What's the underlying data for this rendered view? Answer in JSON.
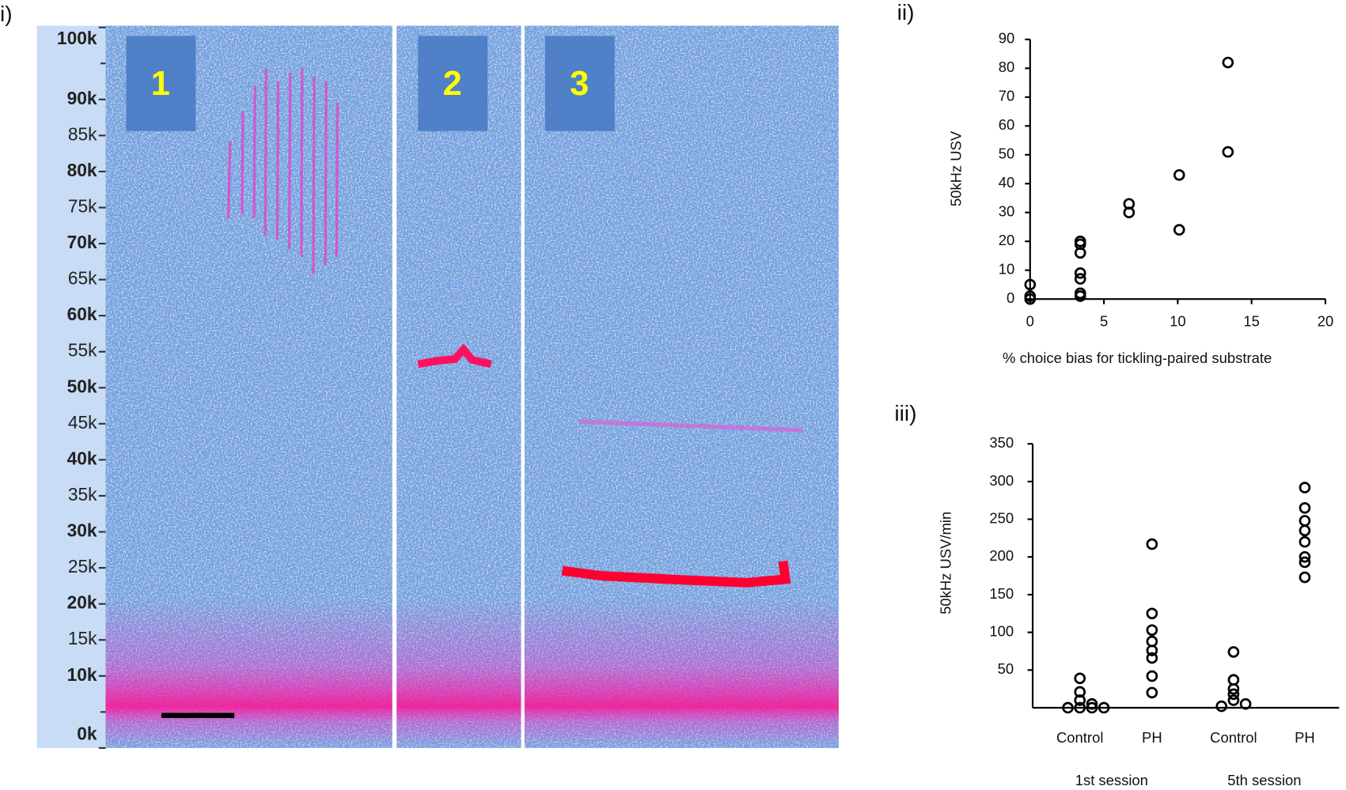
{
  "chart_data": [
    {
      "type": "spectrogram",
      "panel_label": "i)",
      "panels": [
        "1",
        "2",
        "3"
      ],
      "ylim": [
        0,
        100000
      ],
      "yticks": [
        {
          "value": 100000,
          "label": "100k"
        },
        {
          "value": 90000,
          "label": "90k"
        },
        {
          "value": 85000,
          "label": "85k"
        },
        {
          "value": 80000,
          "label": "80k"
        },
        {
          "value": 75000,
          "label": "75k"
        },
        {
          "value": 70000,
          "label": "70k"
        },
        {
          "value": 65000,
          "label": "65k"
        },
        {
          "value": 60000,
          "label": "60k"
        },
        {
          "value": 55000,
          "label": "55k"
        },
        {
          "value": 50000,
          "label": "50k"
        },
        {
          "value": 45000,
          "label": "45k"
        },
        {
          "value": 40000,
          "label": "40k"
        },
        {
          "value": 35000,
          "label": "35k"
        },
        {
          "value": 30000,
          "label": "30k"
        },
        {
          "value": 25000,
          "label": "25k"
        },
        {
          "value": 20000,
          "label": "20k"
        },
        {
          "value": 15000,
          "label": "15k"
        },
        {
          "value": 10000,
          "label": "10k"
        },
        {
          "value": 0,
          "label": "0k"
        }
      ],
      "minor_yticks": [
        95000,
        5000
      ]
    },
    {
      "type": "scatter",
      "panel_label": "ii)",
      "ylabel": "50kHz USV",
      "xlabel": "% choice bias for tickling-paired substrate",
      "xlim": [
        0,
        20
      ],
      "xticks": [
        0,
        5,
        10,
        15,
        20
      ],
      "ylim": [
        0,
        90
      ],
      "yticks": [
        0,
        10,
        20,
        30,
        40,
        50,
        60,
        70,
        80,
        90
      ],
      "x": [
        0,
        0,
        0,
        3.4,
        3.4,
        3.4,
        3.4,
        3.4,
        3.4,
        3.4,
        6.7,
        6.7,
        10.1,
        10.1,
        13.4,
        13.4
      ],
      "values": [
        5,
        1,
        0,
        20,
        19,
        16,
        9,
        7,
        2,
        1,
        33,
        30,
        43,
        24,
        82,
        51
      ],
      "color": "#000000"
    },
    {
      "type": "strip",
      "panel_label": "iii)",
      "ylabel": "50kHz USV/min",
      "categories": [
        "Control",
        "PH",
        "Control",
        "PH"
      ],
      "groups": [
        "1st session",
        "5th session"
      ],
      "ylim": [
        0,
        350
      ],
      "yticks": [
        50,
        100,
        150,
        200,
        250,
        300,
        350
      ],
      "values": [
        [
          39,
          21,
          10,
          5,
          0,
          0,
          0,
          0
        ],
        [
          217,
          125,
          103,
          88,
          76,
          66,
          42,
          20
        ],
        [
          74,
          37,
          25,
          18,
          10,
          5,
          2
        ],
        [
          292,
          265,
          248,
          235,
          220,
          200,
          193,
          173
        ]
      ],
      "color": "#000000"
    }
  ]
}
